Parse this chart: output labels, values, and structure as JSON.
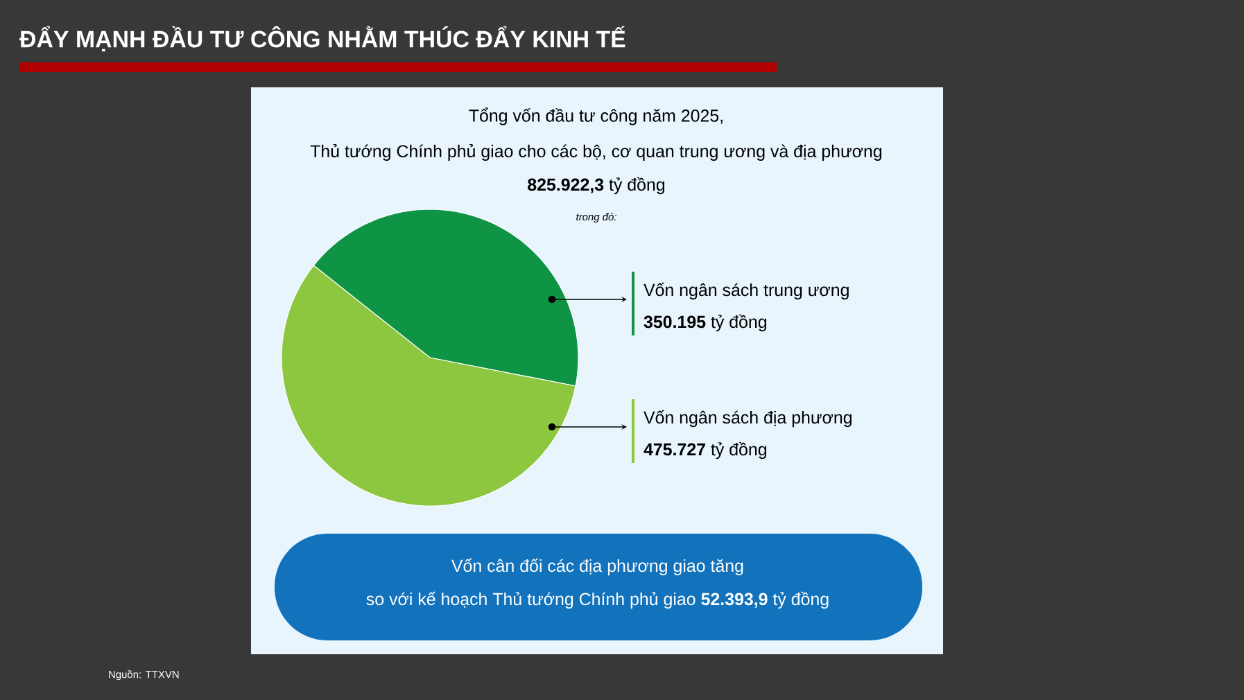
{
  "chart_data": {
    "type": "pie",
    "title": "ĐẨY MẠNH ĐẦU TƯ CÔNG NHẰM THÚC ĐẨY KINH TẾ",
    "categories": [
      "Vốn ngân sách trung ương",
      "Vốn ngân sách địa phương"
    ],
    "values": [
      350195,
      475727
    ],
    "colors": [
      "#0e9444",
      "#8dc63f"
    ],
    "value_labels": [
      "**350.195** tỷ đồng",
      "**475.727** tỷ đồng"
    ],
    "annotations": [
      "Tổng vốn đầu tư công năm 2025,",
      "Thủ tướng Chính phủ giao cho các bộ, cơ quan trung ương và địa phương",
      "**825.922,3** tỷ đồng",
      "trong đó:",
      "Vốn cân đối các địa phương giao tăng",
      "so với kế hoạch Thủ tướng Chính phủ giao **52.393,9** tỷ đồng",
      "Nguồn: TTXVN"
    ]
  }
}
